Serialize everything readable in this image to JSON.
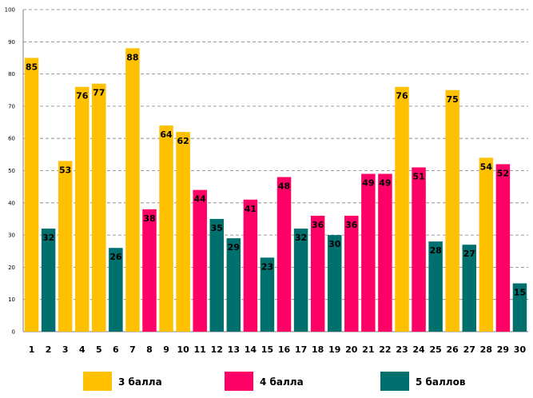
{
  "chart_data": {
    "type": "bar",
    "title": "",
    "xlabel": "",
    "ylabel": "",
    "ylim": [
      0,
      100
    ],
    "yticks": [
      0,
      10,
      20,
      30,
      40,
      50,
      60,
      70,
      80,
      90,
      100
    ],
    "grid": true,
    "legend_position": "bottom",
    "categories": [
      "1",
      "2",
      "3",
      "4",
      "5",
      "6",
      "7",
      "8",
      "9",
      "10",
      "11",
      "12",
      "13",
      "14",
      "15",
      "16",
      "17",
      "18",
      "19",
      "20",
      "21",
      "22",
      "23",
      "24",
      "25",
      "26",
      "27",
      "28",
      "29",
      "30"
    ],
    "values": [
      85,
      32,
      53,
      76,
      77,
      26,
      88,
      38,
      64,
      62,
      44,
      35,
      29,
      41,
      23,
      48,
      32,
      36,
      30,
      36,
      49,
      49,
      76,
      51,
      28,
      75,
      27,
      54,
      52,
      15
    ],
    "groups": [
      "g3",
      "g5",
      "g3",
      "g3",
      "g3",
      "g5",
      "g3",
      "g4",
      "g3",
      "g3",
      "g4",
      "g5",
      "g5",
      "g4",
      "g5",
      "g4",
      "g5",
      "g4",
      "g5",
      "g4",
      "g4",
      "g4",
      "g3",
      "g4",
      "g5",
      "g3",
      "g5",
      "g3",
      "g4",
      "g5"
    ],
    "legend": [
      {
        "key": "g3",
        "label": "3 балла",
        "color": "#FFC000"
      },
      {
        "key": "g4",
        "label": "4 балла",
        "color": "#FF0066"
      },
      {
        "key": "g5",
        "label": "5 баллов",
        "color": "#00706E"
      }
    ]
  }
}
